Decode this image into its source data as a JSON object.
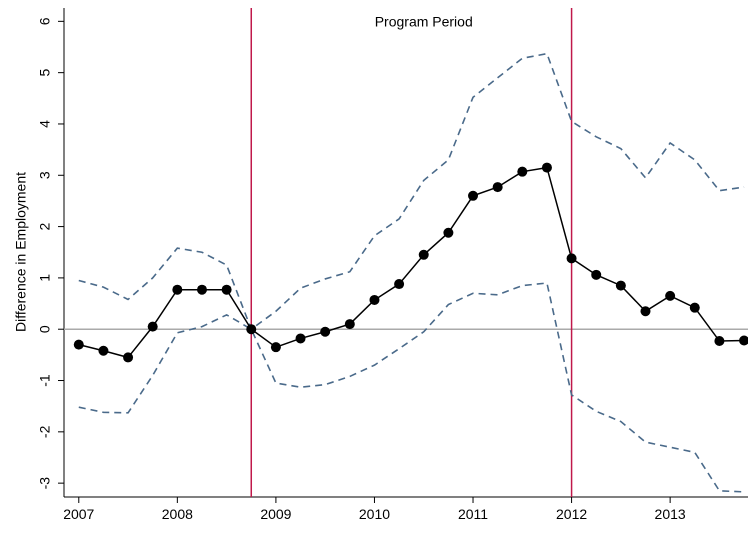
{
  "chart_data": {
    "type": "line",
    "y_label": "Difference in Employment",
    "annotation": {
      "text": "Program Period",
      "x": 2010.5,
      "y": 6
    },
    "x": [
      2007,
      2007.25,
      2007.5,
      2007.75,
      2008,
      2008.25,
      2008.5,
      2008.75,
      2009,
      2009.25,
      2009.5,
      2009.75,
      2010,
      2010.25,
      2010.5,
      2010.75,
      2011,
      2011.25,
      2011.5,
      2011.75,
      2012,
      2012.25,
      2012.5,
      2012.75,
      2013,
      2013.25,
      2013.5,
      2013.75
    ],
    "series": [
      {
        "color": "#4a6a8a",
        "dashed": true,
        "markers": false,
        "values": [
          0.95,
          0.82,
          0.58,
          1.0,
          1.58,
          1.5,
          1.25,
          0,
          0.35,
          0.8,
          0.98,
          1.12,
          1.82,
          2.15,
          2.9,
          3.3,
          4.52,
          4.9,
          5.28,
          5.37,
          4.05,
          3.75,
          3.52,
          2.95,
          3.63,
          3.3,
          2.7,
          2.77
        ]
      },
      {
        "color": "#4a6a8a",
        "dashed": true,
        "markers": false,
        "values": [
          -1.52,
          -1.62,
          -1.63,
          -0.9,
          -0.07,
          0.05,
          0.28,
          0,
          -1.05,
          -1.13,
          -1.08,
          -0.92,
          -0.7,
          -0.38,
          -0.05,
          0.48,
          0.7,
          0.67,
          0.85,
          0.9,
          -1.28,
          -1.6,
          -1.8,
          -2.2,
          -2.3,
          -2.4,
          -3.15,
          -3.17
        ]
      },
      {
        "color": "#000000",
        "dashed": false,
        "markers": true,
        "values": [
          -0.3,
          -0.42,
          -0.55,
          0.05,
          0.77,
          0.77,
          0.77,
          0,
          -0.35,
          -0.18,
          -0.05,
          0.1,
          0.57,
          0.88,
          1.45,
          1.88,
          2.6,
          2.77,
          3.07,
          3.15,
          1.38,
          1.06,
          0.85,
          0.35,
          0.65,
          0.42,
          -0.23,
          -0.22
        ]
      }
    ],
    "reference_line": {
      "y": 0,
      "color": "#aaaaaa"
    },
    "vlines": {
      "x": [
        2008.75,
        2012
      ],
      "color": "#c0184a"
    },
    "xlim": [
      2006.85,
      2013.79
    ],
    "xticks": [
      2007,
      2008,
      2009,
      2010,
      2011,
      2012,
      2013
    ],
    "ylim": [
      -3.27,
      6.26
    ],
    "yticks": [
      -3,
      -2,
      -1,
      0,
      1,
      2,
      3,
      4,
      5,
      6
    ]
  }
}
